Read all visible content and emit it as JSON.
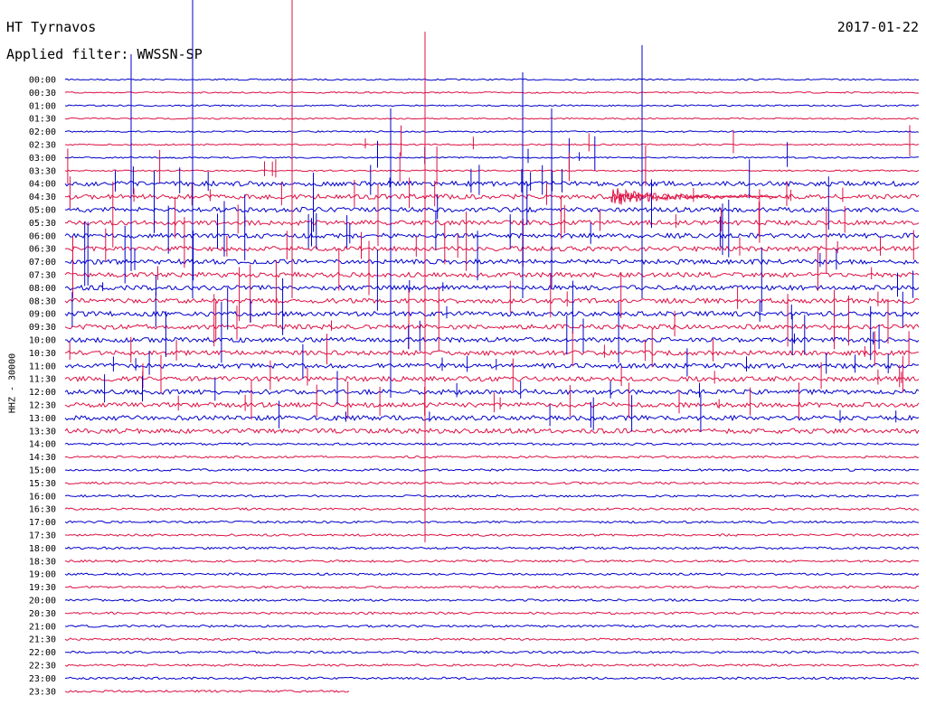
{
  "header": {
    "station": "HT Tyrnavos",
    "date": "2017-01-22",
    "filter": "Applied filter: WWSSN-SP"
  },
  "chart_data": {
    "type": "line",
    "ylabel": "HHZ - 30000",
    "colors": {
      "series_a": "#0000cc",
      "series_b": "#dd1144"
    },
    "rows": [
      "00:00",
      "00:30",
      "01:00",
      "01:30",
      "02:00",
      "02:30",
      "03:00",
      "03:30",
      "04:00",
      "04:30",
      "05:00",
      "05:30",
      "06:00",
      "06:30",
      "07:00",
      "07:30",
      "08:00",
      "08:30",
      "09:00",
      "09:30",
      "10:00",
      "10:30",
      "11:00",
      "11:30",
      "12:00",
      "12:30",
      "13:00",
      "13:30",
      "14:00",
      "14:30",
      "15:00",
      "15:30",
      "16:00",
      "16:30",
      "17:00",
      "17:30",
      "18:00",
      "18:30",
      "19:00",
      "19:30",
      "20:00",
      "20:30",
      "21:00",
      "21:30",
      "22:00",
      "22:30",
      "23:00",
      "23:30"
    ],
    "end_minute": 10
  }
}
